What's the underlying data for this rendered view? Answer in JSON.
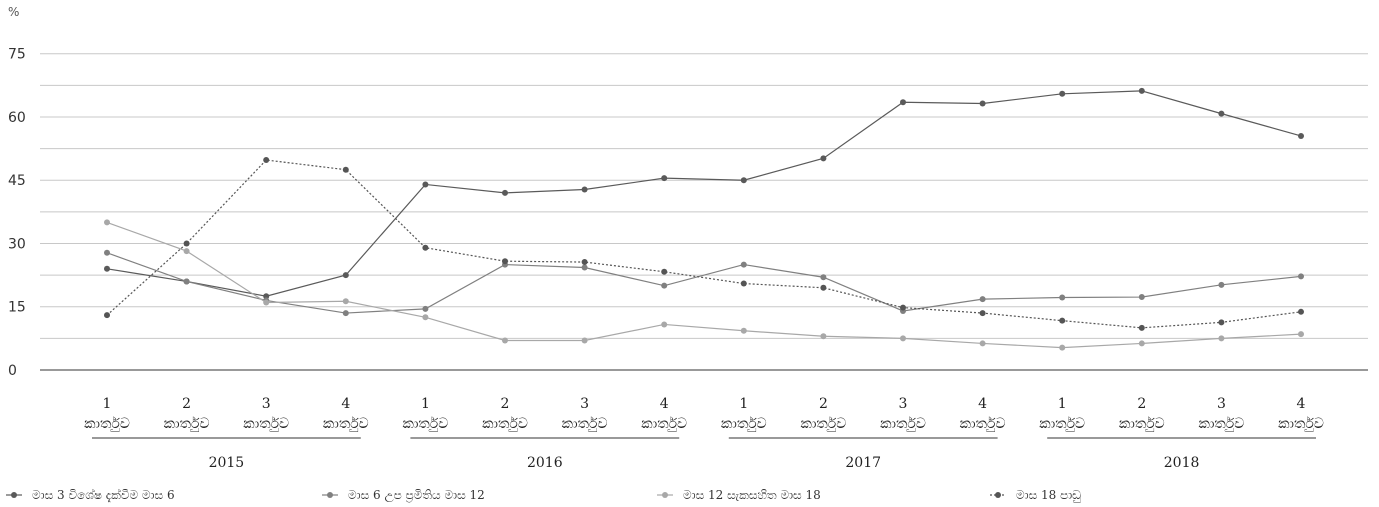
{
  "chart_data": {
    "type": "line",
    "ylabel": "%",
    "ylim": [
      0,
      80
    ],
    "yticks": [
      0,
      15,
      30,
      45,
      60,
      75
    ],
    "grid": true,
    "legend_position": "bottom",
    "quarters": [
      "1\nකාර්තුව",
      "2\nකාර්තුව",
      "3\nකාර්තුව",
      "4\nකාර්තුව",
      "1\nකාර්තුව",
      "2\nකාර්තුව",
      "3\nකාර්තුව",
      "4\nකාර්තුව",
      "1\nකාර්තුව",
      "2\nකාර්තුව",
      "3\nකාර්තුව",
      "4\nකාර්තුව",
      "1\nකාර්තුව",
      "2\nකාර්තුව",
      "3\nකාර්තුව",
      "4\nකාර්තුව"
    ],
    "years": [
      "2015",
      "2016",
      "2017",
      "2018"
    ],
    "series": [
      {
        "name": "මාස 3 විශේෂ දැක්වීම මාස 6",
        "color": "#5a5a5a",
        "dash": "solid",
        "values": [
          24,
          21,
          17.5,
          22.5,
          44,
          42,
          42.8,
          45.5,
          45,
          50.2,
          63.5,
          63.2,
          65.5,
          66.2,
          60.8,
          55.5
        ]
      },
      {
        "name": "මාස 6 උප ප්‍රමිතිය මාස 12",
        "color": "#808080",
        "dash": "solid",
        "values": [
          27.8,
          21,
          16.5,
          13.5,
          14.5,
          25,
          24.3,
          20,
          25,
          22,
          14,
          16.8,
          17.2,
          17.3,
          20.2,
          22.2
        ]
      },
      {
        "name": "මාස 12 සැකසහිත මාස 18",
        "color": "#a8a8a8",
        "dash": "solid",
        "values": [
          35,
          28.2,
          16,
          16.3,
          12.5,
          7,
          7,
          10.8,
          9.3,
          8,
          7.5,
          6.3,
          5.3,
          6.3,
          7.5,
          8.5
        ]
      },
      {
        "name": "මාස 18 පාඩු",
        "color": "#555555",
        "dash": "dotted",
        "values": [
          13,
          30,
          49.8,
          47.5,
          29,
          25.8,
          25.6,
          23.3,
          20.5,
          19.5,
          14.8,
          13.5,
          11.7,
          10,
          11.3,
          13.8
        ]
      }
    ]
  }
}
